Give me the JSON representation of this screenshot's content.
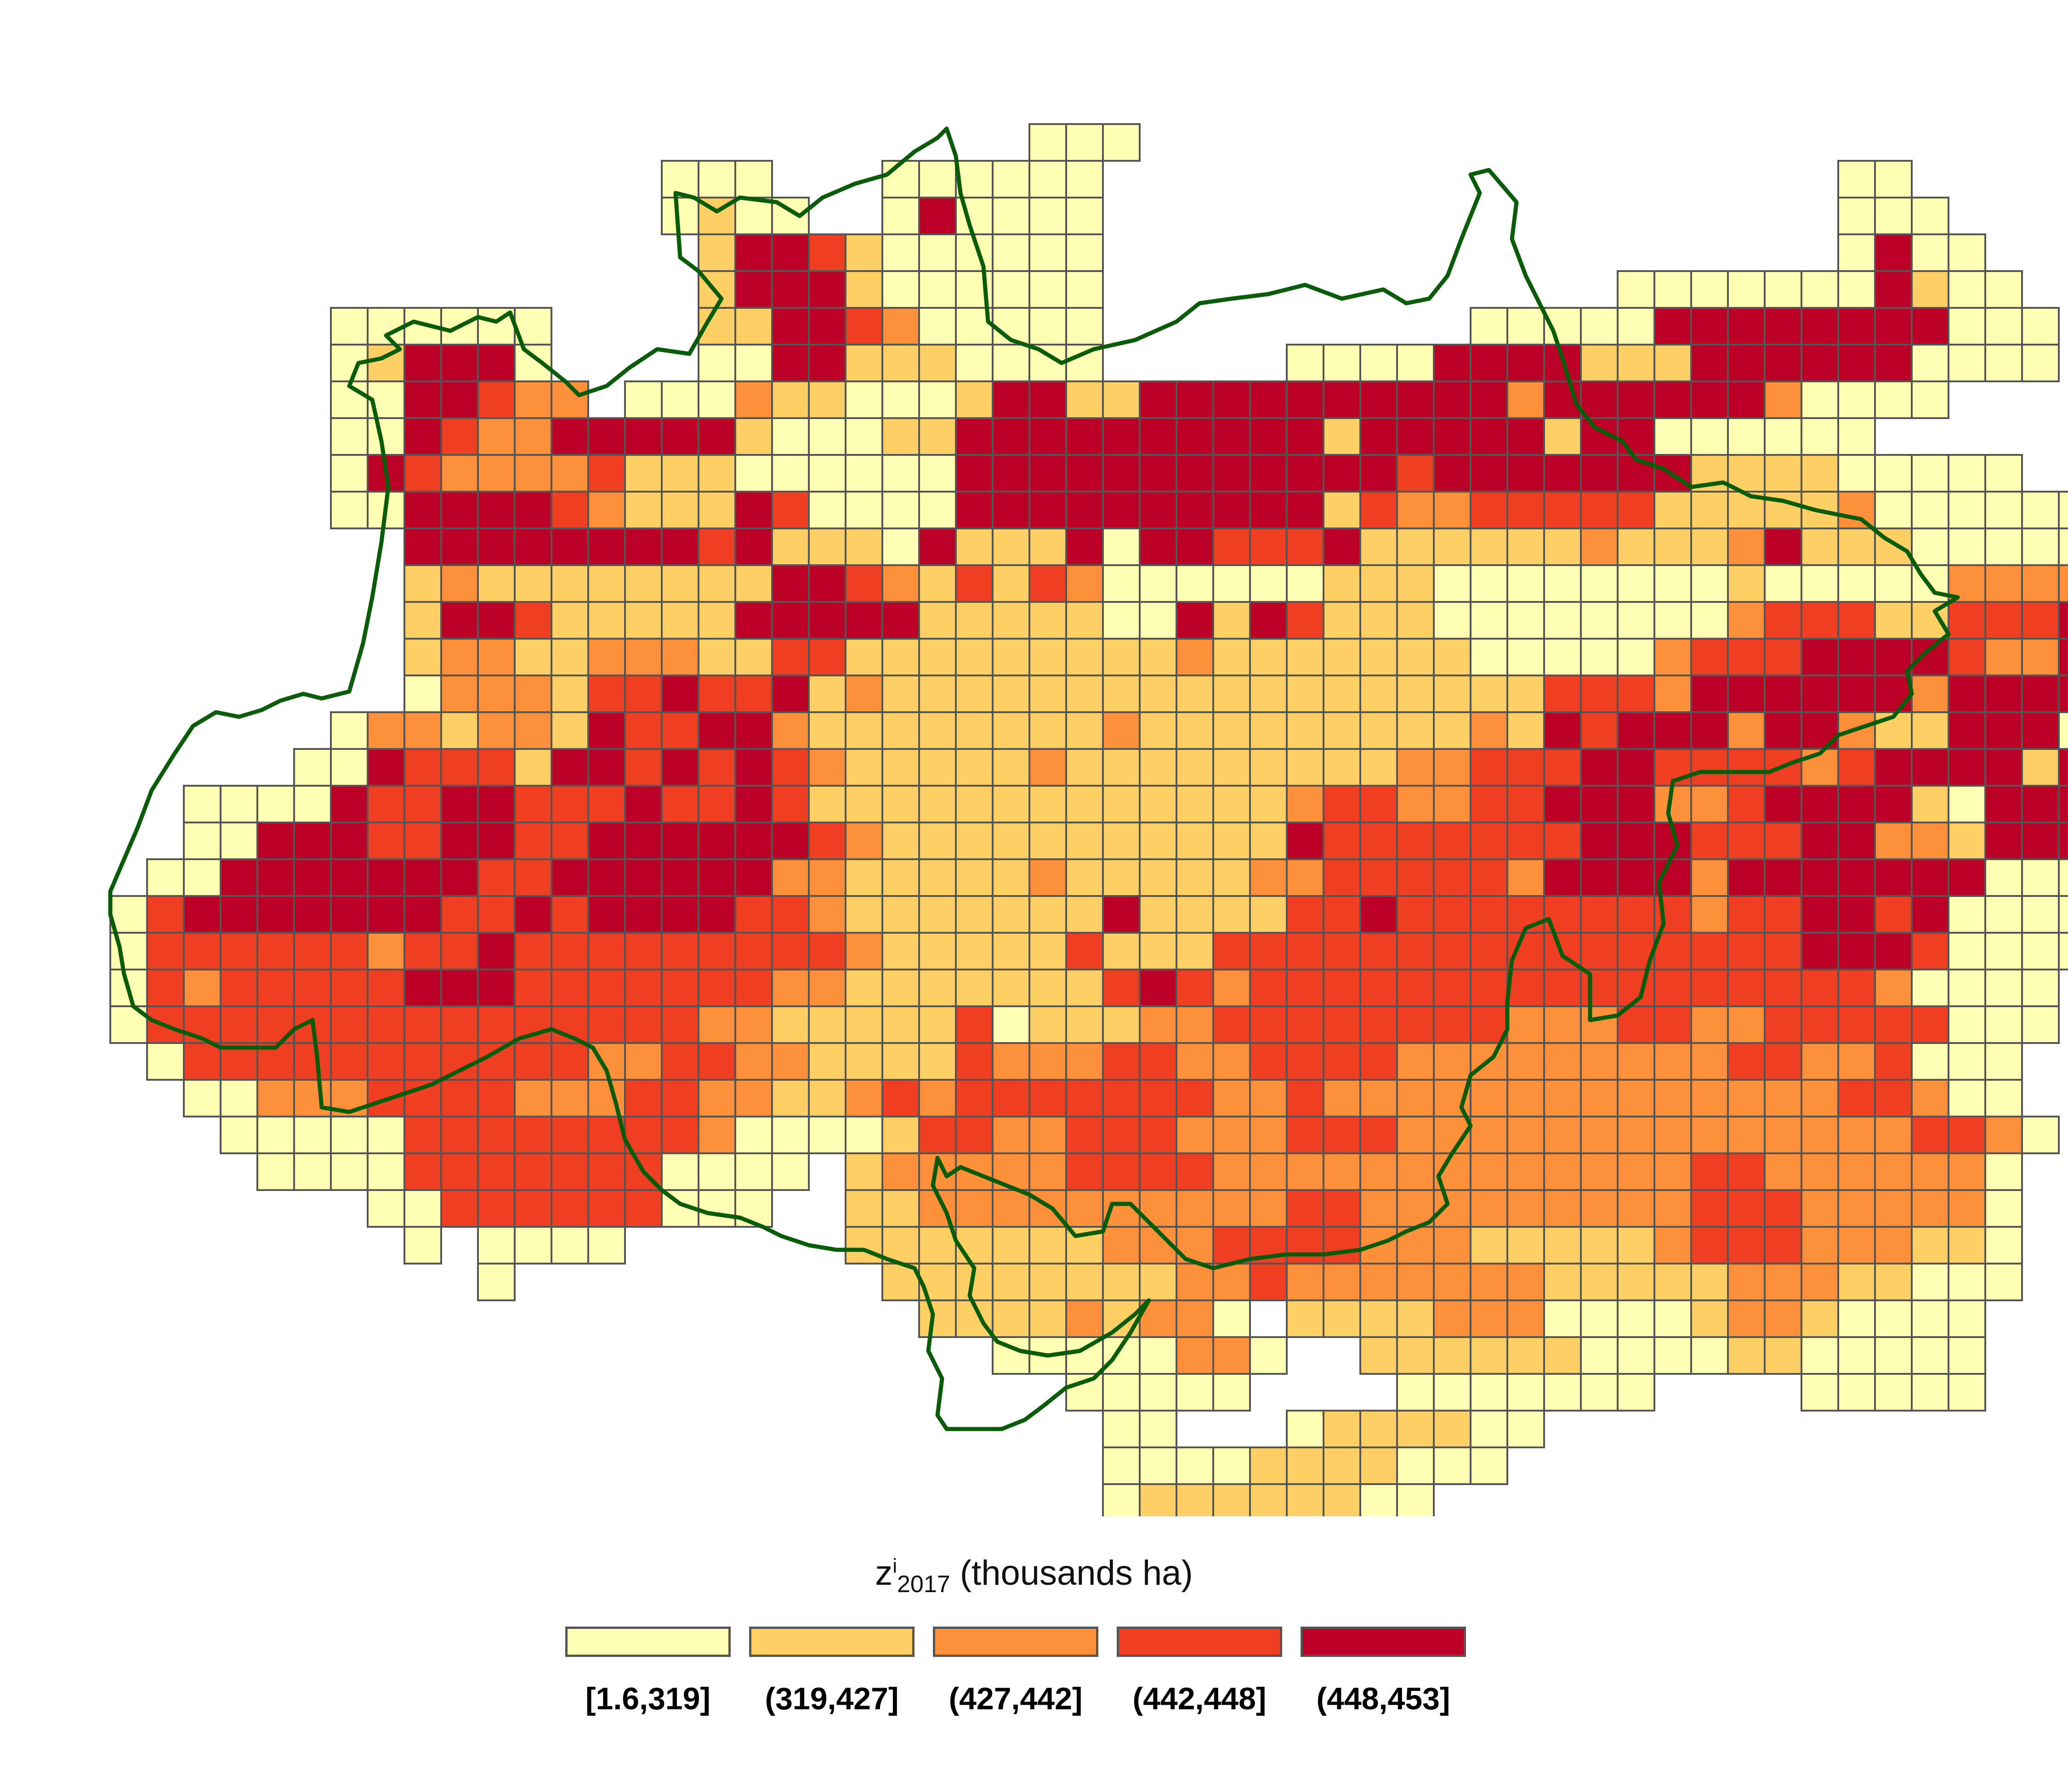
{
  "map": {
    "legend": {
      "title_main": "z",
      "title_sup": "i",
      "title_sub": "2017",
      "title_unit": "(thousands ha)",
      "classes": [
        {
          "label": "[1.6,319]",
          "color": "#ffffb3"
        },
        {
          "label": "(319,427]",
          "color": "#fed064"
        },
        {
          "label": "(427,442]",
          "color": "#fd9038"
        },
        {
          "label": "(442,448]",
          "color": "#ef3e22"
        },
        {
          "label": "(448,453]",
          "color": "#bd0026"
        }
      ]
    },
    "cell_border_color": "#555555",
    "boundary_color": "#0a5c0a",
    "grid_rows": [
      "                         AAA",
      "               AAA   AAAAAA                    AA",
      "               ABAA  AEAAAA                    AAA",
      "                BEEDBAAAAAA                    AEAA",
      "                BEEEBAAAAAA              AAAAAAAEBAA",
      "      AAAAAA    BBEEDCAAAAA          AAAAAEEEEEEEEAAA",
      "      ABEEEA    AAEEBBBAAAA     AAAAEEEEBBBEEEEEEAAAA",
      "      AAEEDCC AAACBBAAABEEBBEEEEEEEEEECEEEEEECAAAA",
      "      AAEDCCEEEEEBAAABBEEEEEEEEEEBEEEEEBEEAAAAAA",
      "      AEDCCCCDBBBAAAAAAEEEEEEEEEEEEDEEEEEEEBBBBAAAAA",
      "      AAEEEEDCBBBEDAAAAEEEEEEEEEEBDCCDDDDDBBBBBCAAAAAAAAA",
      "        EEEEEEEEDEBBBAEBBBEAEEDDDEBBBBBBCBBBCEBBBAAAAAAAAAAA",
      "        BCBBBBBBBBEEDCBDBDCAAAAAABBBAAAAAAAABAAAAACCCCCAA",
      "        BEEDBBBBBEEEEEBBBBBAAEBEDBBBAAAAAAAACDDDBBDDDEEEEBAAAA",
      "        BCCBBCCCBBDDBBBBBBBBBCBBBBBBBAAAAACDDDEEEEDCCEEEEBCAAAA",
      "        ACCCBDDEDDEBCBBBBBBBBBBBBBBBBBBDDDCEEEEEECEEEEEEEEEEEEA",
      "      ACCBCCBEDDEECBBBBBBBBCBBBBBBBBBCBEDEEECEECBBEEEAEEEEBEEA",
      "     AAEDDDBEEDEDEDCBBBBBCBBBBBBBBBCCDDDEEDDDDCDEEEEBEEEEBAA",
      "  AAAAEDDEEDDDEDDEDBBBBBBBBBBBBBCDDCCDDEEECCDEEEEBAEEEEEAAA",
      "  AAEEEDDEEDDEEEEEEDCBBBBBBBBBBBEDDDDDDDEEEDDDEECCBEEEEEAAA",
      " AAEEEEEEEDDEEEEEECCBBBBBCBBBBBCCDDDDDCEEEECEEEEEEEAAAAA",
      "ADEEEEEEEDDEDEEEEDDCBBBBBBBEBBBBDDEDDDDDDDDCDDEEDEAAAA",
      "ADDDDDDCDDEDDDDDDDDDCBBBBBDBBBDDDDDDDDDDDDDDDDEEEDAAAA",
      "ADCDDDDDEEEDDDDDDDCCBBBBBBBDEDCDDDDDDDDDDDDDDDDDCAAAA",
      "ADDDDDDDDDDDDDDDCCBBBBBDABBBCCDDDDDDDDCCCDDCCDDDDDAAA",
      " ADDDDDDDDDDDCCDDCCBBBBDCCCDDCCDDDDCCCCCCCCCDDCCDAAA",
      "  AACCCDDDDCCCDDCCBBCDCDDDDDDDCCDCCCCCCCCCCCCCCDDCAA",
      "   AAAAADDDDDDDDCAAAABDDCCDDDCCCDDDCCCCCCCCCCCCCCDDCA",
      "    AAAADDDDDDDAAAA BCCCCCDDDDCCCCCCCCCCCCCDDCCCCCCA",
      "       AADDDDDDAAA  BBCCCCCCCCCCDDCCCCCCCCCDDDCCCCCA",
      "        A AAAA      BBBBBBBCCCDDDDCCCBBBBBCDDDCCCBBA",
      "          A          BBBBBBBBCCDCCCCCCCBBBBBCCCBBAAA",
      "                      BBBBCBCCA BBBBCCCAAAABCCBAAAA",
      "                        AAAAACCA  BBBBBBAAAABBAAAAA",
      "                          AAAAA    AAAAAAA    AAAAA",
      "                           AA   ABBBBAA",
      "                           AAAABBBBAAA",
      "                           ABBBBBBAA",
      "                           AAAAAAA",
      "                           AAA  AA",
      "                              AA"
    ]
  }
}
